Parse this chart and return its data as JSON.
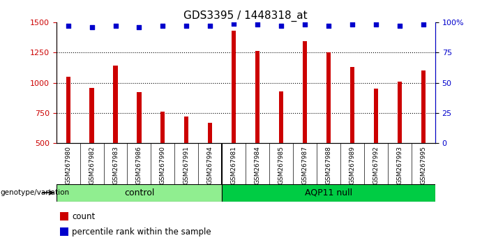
{
  "title": "GDS3395 / 1448318_at",
  "samples": [
    "GSM267980",
    "GSM267982",
    "GSM267983",
    "GSM267986",
    "GSM267990",
    "GSM267991",
    "GSM267994",
    "GSM267981",
    "GSM267984",
    "GSM267985",
    "GSM267987",
    "GSM267988",
    "GSM267989",
    "GSM267992",
    "GSM267993",
    "GSM267995"
  ],
  "counts": [
    1050,
    960,
    1140,
    920,
    760,
    720,
    670,
    1430,
    1260,
    930,
    1345,
    1250,
    1130,
    950,
    1010,
    1100
  ],
  "percentile_ranks": [
    97,
    96,
    97,
    96,
    97,
    97,
    97,
    99,
    98,
    97,
    98,
    97,
    98,
    98,
    97,
    98
  ],
  "n_control": 7,
  "bar_color": "#CC0000",
  "dot_color": "#0000CC",
  "ylim_left": [
    500,
    1500
  ],
  "ylim_right": [
    0,
    100
  ],
  "yticks_left": [
    500,
    750,
    1000,
    1250,
    1500
  ],
  "yticks_right": [
    0,
    25,
    50,
    75,
    100
  ],
  "grid_values": [
    750,
    1000,
    1250
  ],
  "control_color": "#90EE90",
  "aqp_color": "#00CC44",
  "label_bg_color": "#D3D3D3",
  "genotype_label": "genotype/variation",
  "control_label": "control",
  "aqp_label": "AQP11 null"
}
